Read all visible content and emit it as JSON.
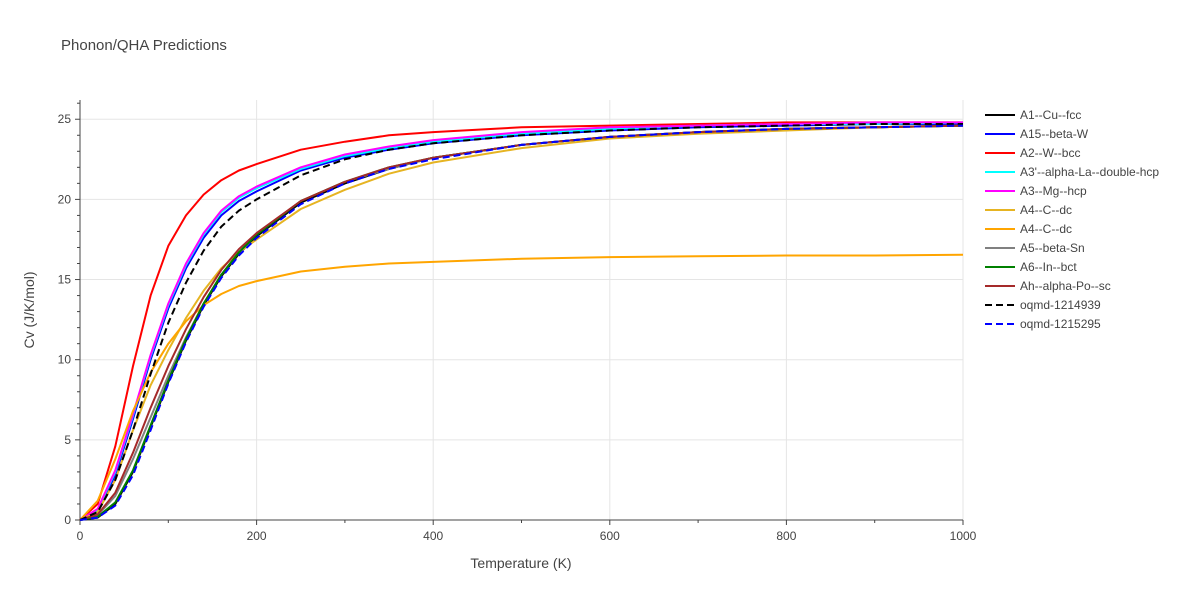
{
  "chart_data": {
    "type": "line",
    "title": "Phonon/QHA Predictions",
    "xlabel": "Temperature (K)",
    "ylabel": "Cv (J/K/mol)",
    "xlim": [
      0,
      1000
    ],
    "ylim": [
      0,
      26.2
    ],
    "xticks": [
      0,
      200,
      400,
      600,
      800,
      1000
    ],
    "yticks": [
      0,
      5,
      10,
      15,
      20,
      25
    ],
    "grid": true,
    "legend_position": "right",
    "series": [
      {
        "name": "A1--Cu--fcc",
        "color": "#000000",
        "dash": "solid",
        "x": [
          0,
          20,
          40,
          60,
          80,
          100,
          120,
          140,
          160,
          180,
          200,
          250,
          300,
          350,
          400,
          500,
          600,
          700,
          800,
          900,
          1000
        ],
        "y": [
          0,
          0.15,
          1.0,
          3.0,
          5.8,
          8.6,
          11.2,
          13.4,
          15.2,
          16.6,
          17.7,
          19.8,
          21.0,
          21.9,
          22.6,
          23.4,
          23.9,
          24.2,
          24.4,
          24.5,
          24.6
        ]
      },
      {
        "name": "A15--beta-W",
        "color": "#0000ff",
        "dash": "solid",
        "x": [
          0,
          20,
          40,
          60,
          80,
          100,
          120,
          140,
          160,
          180,
          200,
          250,
          300,
          350,
          400,
          500,
          600,
          700,
          800,
          900,
          1000
        ],
        "y": [
          0,
          0.6,
          2.8,
          6.3,
          10.0,
          13.2,
          15.7,
          17.6,
          19.0,
          19.9,
          20.5,
          21.8,
          22.6,
          23.1,
          23.5,
          24.0,
          24.3,
          24.5,
          24.6,
          24.7,
          24.7
        ]
      },
      {
        "name": "A2--W--bcc",
        "color": "#ff0000",
        "dash": "solid",
        "x": [
          0,
          20,
          40,
          60,
          80,
          100,
          120,
          140,
          160,
          180,
          200,
          250,
          300,
          350,
          400,
          500,
          600,
          700,
          800,
          900,
          1000
        ],
        "y": [
          0,
          1.0,
          4.6,
          9.6,
          14.0,
          17.1,
          19.0,
          20.3,
          21.2,
          21.8,
          22.2,
          23.1,
          23.6,
          24.0,
          24.2,
          24.5,
          24.6,
          24.7,
          24.8,
          24.8,
          24.8
        ]
      },
      {
        "name": "A3'--alpha-La--double-hcp",
        "color": "#00ffff",
        "dash": "solid",
        "x": [
          0,
          20,
          40,
          60,
          80,
          100,
          120,
          140,
          160,
          180,
          200,
          250,
          300,
          350,
          400,
          500,
          600,
          700,
          800,
          900,
          1000
        ],
        "y": [
          0,
          0.65,
          3.0,
          6.5,
          10.2,
          13.4,
          15.9,
          17.8,
          19.2,
          20.1,
          20.7,
          21.9,
          22.7,
          23.2,
          23.6,
          24.1,
          24.4,
          24.6,
          24.7,
          24.7,
          24.8
        ]
      },
      {
        "name": "A3--Mg--hcp",
        "color": "#ff00ff",
        "dash": "solid",
        "x": [
          0,
          20,
          40,
          60,
          80,
          100,
          120,
          140,
          160,
          180,
          200,
          250,
          300,
          350,
          400,
          500,
          600,
          700,
          800,
          900,
          1000
        ],
        "y": [
          0,
          0.7,
          3.1,
          6.6,
          10.3,
          13.5,
          16.0,
          17.9,
          19.3,
          20.2,
          20.8,
          22.0,
          22.8,
          23.3,
          23.7,
          24.2,
          24.5,
          24.6,
          24.7,
          24.8,
          24.8
        ]
      },
      {
        "name": "A4--C--dc",
        "color": "#e6b422",
        "dash": "solid",
        "x": [
          0,
          20,
          40,
          60,
          80,
          100,
          120,
          140,
          160,
          180,
          200,
          250,
          300,
          350,
          400,
          500,
          600,
          700,
          800,
          900,
          1000
        ],
        "y": [
          0,
          0.5,
          2.5,
          5.6,
          8.4,
          10.6,
          12.6,
          14.3,
          15.7,
          16.7,
          17.5,
          19.4,
          20.6,
          21.6,
          22.3,
          23.2,
          23.8,
          24.1,
          24.3,
          24.5,
          24.6
        ]
      },
      {
        "name": "A4--C--dc",
        "color": "#ffa500",
        "dash": "solid",
        "x": [
          0,
          20,
          40,
          60,
          80,
          100,
          120,
          140,
          160,
          180,
          200,
          250,
          300,
          350,
          400,
          500,
          600,
          700,
          800,
          900,
          1000
        ],
        "y": [
          0,
          1.2,
          3.8,
          6.8,
          9.2,
          11.0,
          12.4,
          13.4,
          14.1,
          14.6,
          14.9,
          15.5,
          15.8,
          16.0,
          16.1,
          16.3,
          16.4,
          16.45,
          16.5,
          16.5,
          16.55
        ]
      },
      {
        "name": "A5--beta-Sn",
        "color": "#808080",
        "dash": "solid",
        "x": [
          0,
          20,
          40,
          60,
          80,
          100,
          120,
          140,
          160,
          180,
          200,
          250,
          300,
          350,
          400,
          500,
          600,
          700,
          800,
          900,
          1000
        ],
        "y": [
          0,
          0.3,
          1.5,
          3.8,
          6.4,
          9.0,
          11.4,
          13.5,
          15.3,
          16.7,
          17.8,
          19.9,
          21.1,
          21.9,
          22.6,
          23.4,
          23.9,
          24.2,
          24.4,
          24.5,
          24.6
        ]
      },
      {
        "name": "A6--In--bct",
        "color": "#008000",
        "dash": "solid",
        "x": [
          0,
          20,
          40,
          60,
          80,
          100,
          120,
          140,
          160,
          180,
          200,
          250,
          300,
          350,
          400,
          500,
          600,
          700,
          800,
          900,
          1000
        ],
        "y": [
          0,
          0.2,
          1.1,
          3.1,
          5.9,
          8.7,
          11.3,
          13.5,
          15.3,
          16.7,
          17.8,
          19.9,
          21.1,
          22.0,
          22.6,
          23.4,
          23.9,
          24.2,
          24.4,
          24.5,
          24.6
        ]
      },
      {
        "name": "Ah--alpha-Po--sc",
        "color": "#a52a2a",
        "dash": "solid",
        "x": [
          0,
          20,
          40,
          60,
          80,
          100,
          120,
          140,
          160,
          180,
          200,
          250,
          300,
          350,
          400,
          500,
          600,
          700,
          800,
          900,
          1000
        ],
        "y": [
          0,
          0.35,
          1.7,
          4.2,
          7.0,
          9.6,
          11.9,
          13.9,
          15.6,
          16.9,
          17.9,
          19.9,
          21.1,
          22.0,
          22.6,
          23.4,
          23.9,
          24.2,
          24.4,
          24.5,
          24.6
        ]
      },
      {
        "name": "oqmd-1214939",
        "color": "#000000",
        "dash": "dash",
        "x": [
          0,
          20,
          40,
          60,
          80,
          100,
          120,
          140,
          160,
          180,
          200,
          250,
          300,
          350,
          400,
          500,
          600,
          700,
          800,
          900,
          1000
        ],
        "y": [
          0,
          0.5,
          2.5,
          5.6,
          9.1,
          12.3,
          14.8,
          16.8,
          18.3,
          19.3,
          20.0,
          21.5,
          22.5,
          23.1,
          23.5,
          24.0,
          24.3,
          24.5,
          24.6,
          24.7,
          24.7
        ]
      },
      {
        "name": "oqmd-1215295",
        "color": "#0000ff",
        "dash": "dash",
        "x": [
          0,
          20,
          40,
          60,
          80,
          100,
          120,
          140,
          160,
          180,
          200,
          250,
          300,
          350,
          400,
          500,
          600,
          700,
          800,
          900,
          1000
        ],
        "y": [
          0,
          0.15,
          0.9,
          2.8,
          5.6,
          8.5,
          11.1,
          13.3,
          15.1,
          16.5,
          17.6,
          19.7,
          21.0,
          21.9,
          22.5,
          23.4,
          23.9,
          24.2,
          24.4,
          24.5,
          24.6
        ]
      }
    ]
  }
}
